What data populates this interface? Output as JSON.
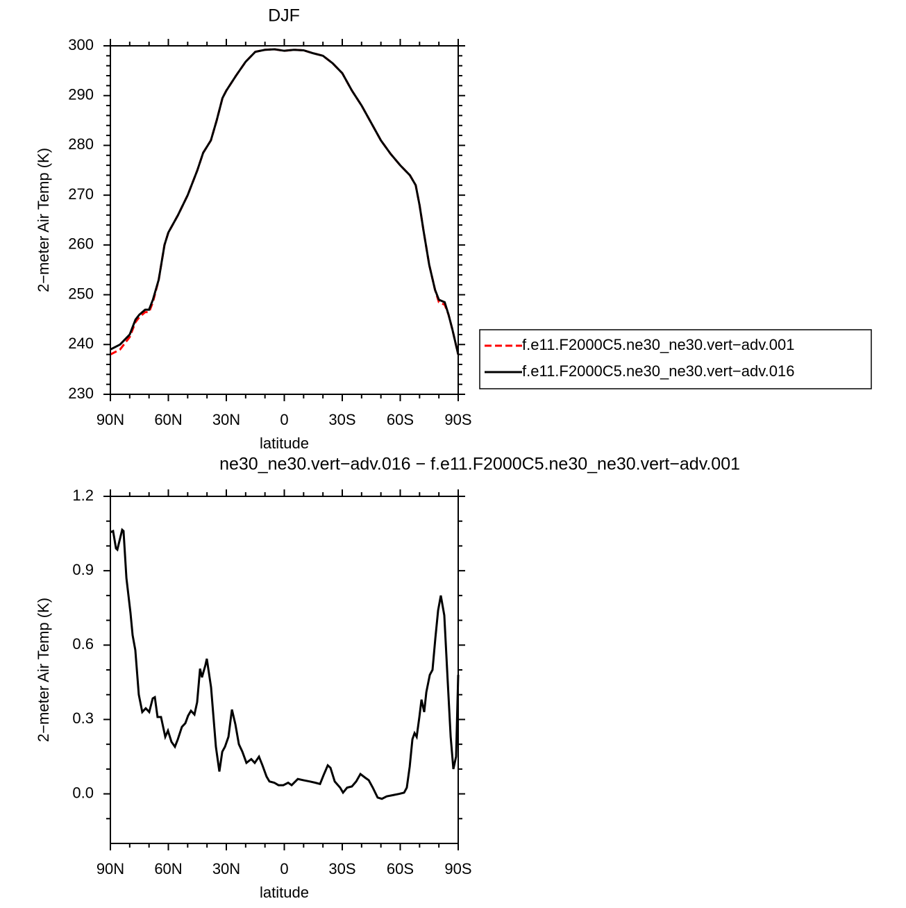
{
  "chart_data": [
    {
      "type": "line",
      "title": "DJF",
      "x_label": "latitude",
      "y_label": "2−meter Air Temp (K)",
      "x": [
        90,
        85,
        80,
        77,
        75,
        72,
        70,
        68,
        65,
        62,
        60,
        55,
        50,
        45,
        42,
        38,
        35,
        32,
        30,
        25,
        20,
        15,
        10,
        5,
        0,
        -5,
        -10,
        -15,
        -20,
        -25,
        -30,
        -35,
        -40,
        -45,
        -50,
        -55,
        -60,
        -65,
        -68,
        -70,
        -72,
        -75,
        -78,
        -80,
        -83,
        -85,
        -87,
        -90
      ],
      "series": [
        {
          "name": "f.e11.F2000C5.ne30_ne30.vert−adv.001",
          "color": "#ff0000",
          "line_style": "dashed",
          "values": [
            238,
            239,
            241.5,
            244.5,
            245.5,
            246.5,
            246.5,
            248.5,
            253,
            260,
            262.5,
            266,
            270,
            275,
            278.5,
            281,
            285,
            289.5,
            291,
            294,
            296.8,
            298.8,
            299.2,
            299.3,
            299,
            299.2,
            299.1,
            298.5,
            298,
            296.5,
            294.5,
            291,
            288,
            284.5,
            281,
            278.3,
            276,
            274,
            272,
            268,
            263,
            256,
            251,
            248.5,
            248,
            246,
            243,
            238
          ]
        },
        {
          "name": "f.e11.F2000C5.ne30_ne30.vert−adv.016",
          "color": "#000000",
          "line_style": "solid",
          "values": [
            239,
            240,
            242,
            245,
            246,
            247,
            247,
            249,
            253,
            260,
            262.5,
            266,
            270,
            275,
            278.5,
            281,
            285,
            289.5,
            291,
            294,
            296.8,
            298.8,
            299.2,
            299.3,
            299,
            299.2,
            299.1,
            298.5,
            298,
            296.5,
            294.5,
            291,
            288,
            284.5,
            281,
            278.3,
            276,
            274,
            272,
            268,
            263,
            256,
            251,
            249,
            248.5,
            246,
            243,
            238
          ]
        }
      ],
      "xlim": [
        90,
        -90
      ],
      "xticks": [
        {
          "value": 90,
          "label": "90N"
        },
        {
          "value": 60,
          "label": "60N"
        },
        {
          "value": 30,
          "label": "30N"
        },
        0,
        {
          "value": -30,
          "label": "30S"
        },
        {
          "value": -60,
          "label": "60S"
        },
        {
          "value": -90,
          "label": "90S"
        }
      ],
      "ylim": [
        230,
        300
      ],
      "yticks": [
        230,
        240,
        250,
        260,
        270,
        280,
        290,
        300
      ],
      "legend": "right"
    },
    {
      "type": "line",
      "title": "ne30_ne30.vert−adv.016 − f.e11.F2000C5.ne30_ne30.vert−adv.001",
      "x_label": "latitude",
      "y_label": "2−meter Air Temp (K)",
      "color": "#000000",
      "x": [
        90,
        88.6,
        87.1,
        86.4,
        85,
        83.9,
        83.2,
        81.7,
        79.6,
        78.5,
        77.1,
        75.3,
        73.5,
        71.7,
        69.9,
        68.1,
        67,
        65.6,
        63.8,
        61.6,
        60.2,
        58.4,
        56.6,
        55.1,
        53,
        51.2,
        49.8,
        48.3,
        46.5,
        45.1,
        43.6,
        42.6,
        40.8,
        40.1,
        37.9,
        35.4,
        33.6,
        32.1,
        30.7,
        28.9,
        27.1,
        25.3,
        23.5,
        21.7,
        19.6,
        17.1,
        15.3,
        13.1,
        11.3,
        9.2,
        7.7,
        5.2,
        3,
        0.5,
        -2,
        -3.8,
        -7,
        -9.9,
        -13.1,
        -16,
        -18.5,
        -20.3,
        -22.5,
        -23.9,
        -26.1,
        -28.9,
        -30.4,
        -32.5,
        -35,
        -37.2,
        -39.4,
        -41.9,
        -43.7,
        -45.8,
        -48.3,
        -50.5,
        -53,
        -56.3,
        -59.5,
        -62,
        -63.4,
        -64.9,
        -66.3,
        -67.4,
        -68.5,
        -69.9,
        -71,
        -72.4,
        -73.5,
        -75.3,
        -76.7,
        -78.2,
        -79.6,
        -81,
        -82.8,
        -84.6,
        -86.1,
        -87.5,
        -88.9,
        -90
      ],
      "values": [
        1.055,
        1.06,
        0.99,
        0.985,
        1.03,
        1.065,
        1.06,
        0.87,
        0.73,
        0.64,
        0.58,
        0.4,
        0.33,
        0.345,
        0.33,
        0.385,
        0.39,
        0.31,
        0.31,
        0.23,
        0.255,
        0.21,
        0.19,
        0.22,
        0.27,
        0.285,
        0.315,
        0.335,
        0.32,
        0.37,
        0.505,
        0.47,
        0.52,
        0.545,
        0.43,
        0.19,
        0.09,
        0.17,
        0.19,
        0.23,
        0.34,
        0.28,
        0.2,
        0.17,
        0.125,
        0.14,
        0.125,
        0.15,
        0.115,
        0.07,
        0.05,
        0.045,
        0.035,
        0.035,
        0.045,
        0.035,
        0.06,
        0.055,
        0.05,
        0.045,
        0.04,
        0.075,
        0.115,
        0.105,
        0.05,
        0.025,
        0.005,
        0.025,
        0.03,
        0.05,
        0.08,
        0.065,
        0.055,
        0.025,
        -0.015,
        -0.02,
        -0.01,
        -0.005,
        0,
        0.005,
        0.025,
        0.11,
        0.22,
        0.245,
        0.23,
        0.31,
        0.38,
        0.33,
        0.41,
        0.48,
        0.5,
        0.63,
        0.74,
        0.8,
        0.72,
        0.45,
        0.23,
        0.1,
        0.15,
        0.48
      ],
      "xlim": [
        90,
        -90
      ],
      "xticks": [
        {
          "value": 90,
          "label": "90N"
        },
        {
          "value": 60,
          "label": "60N"
        },
        {
          "value": 30,
          "label": "30N"
        },
        0,
        {
          "value": -30,
          "label": "30S"
        },
        {
          "value": -60,
          "label": "60S"
        },
        {
          "value": -90,
          "label": "90S"
        }
      ],
      "ylim": [
        -0.2,
        1.2
      ],
      "yticks": [
        {
          "value": 0,
          "label": "0.0"
        },
        0.3,
        0.6,
        0.9,
        1.2
      ]
    }
  ]
}
